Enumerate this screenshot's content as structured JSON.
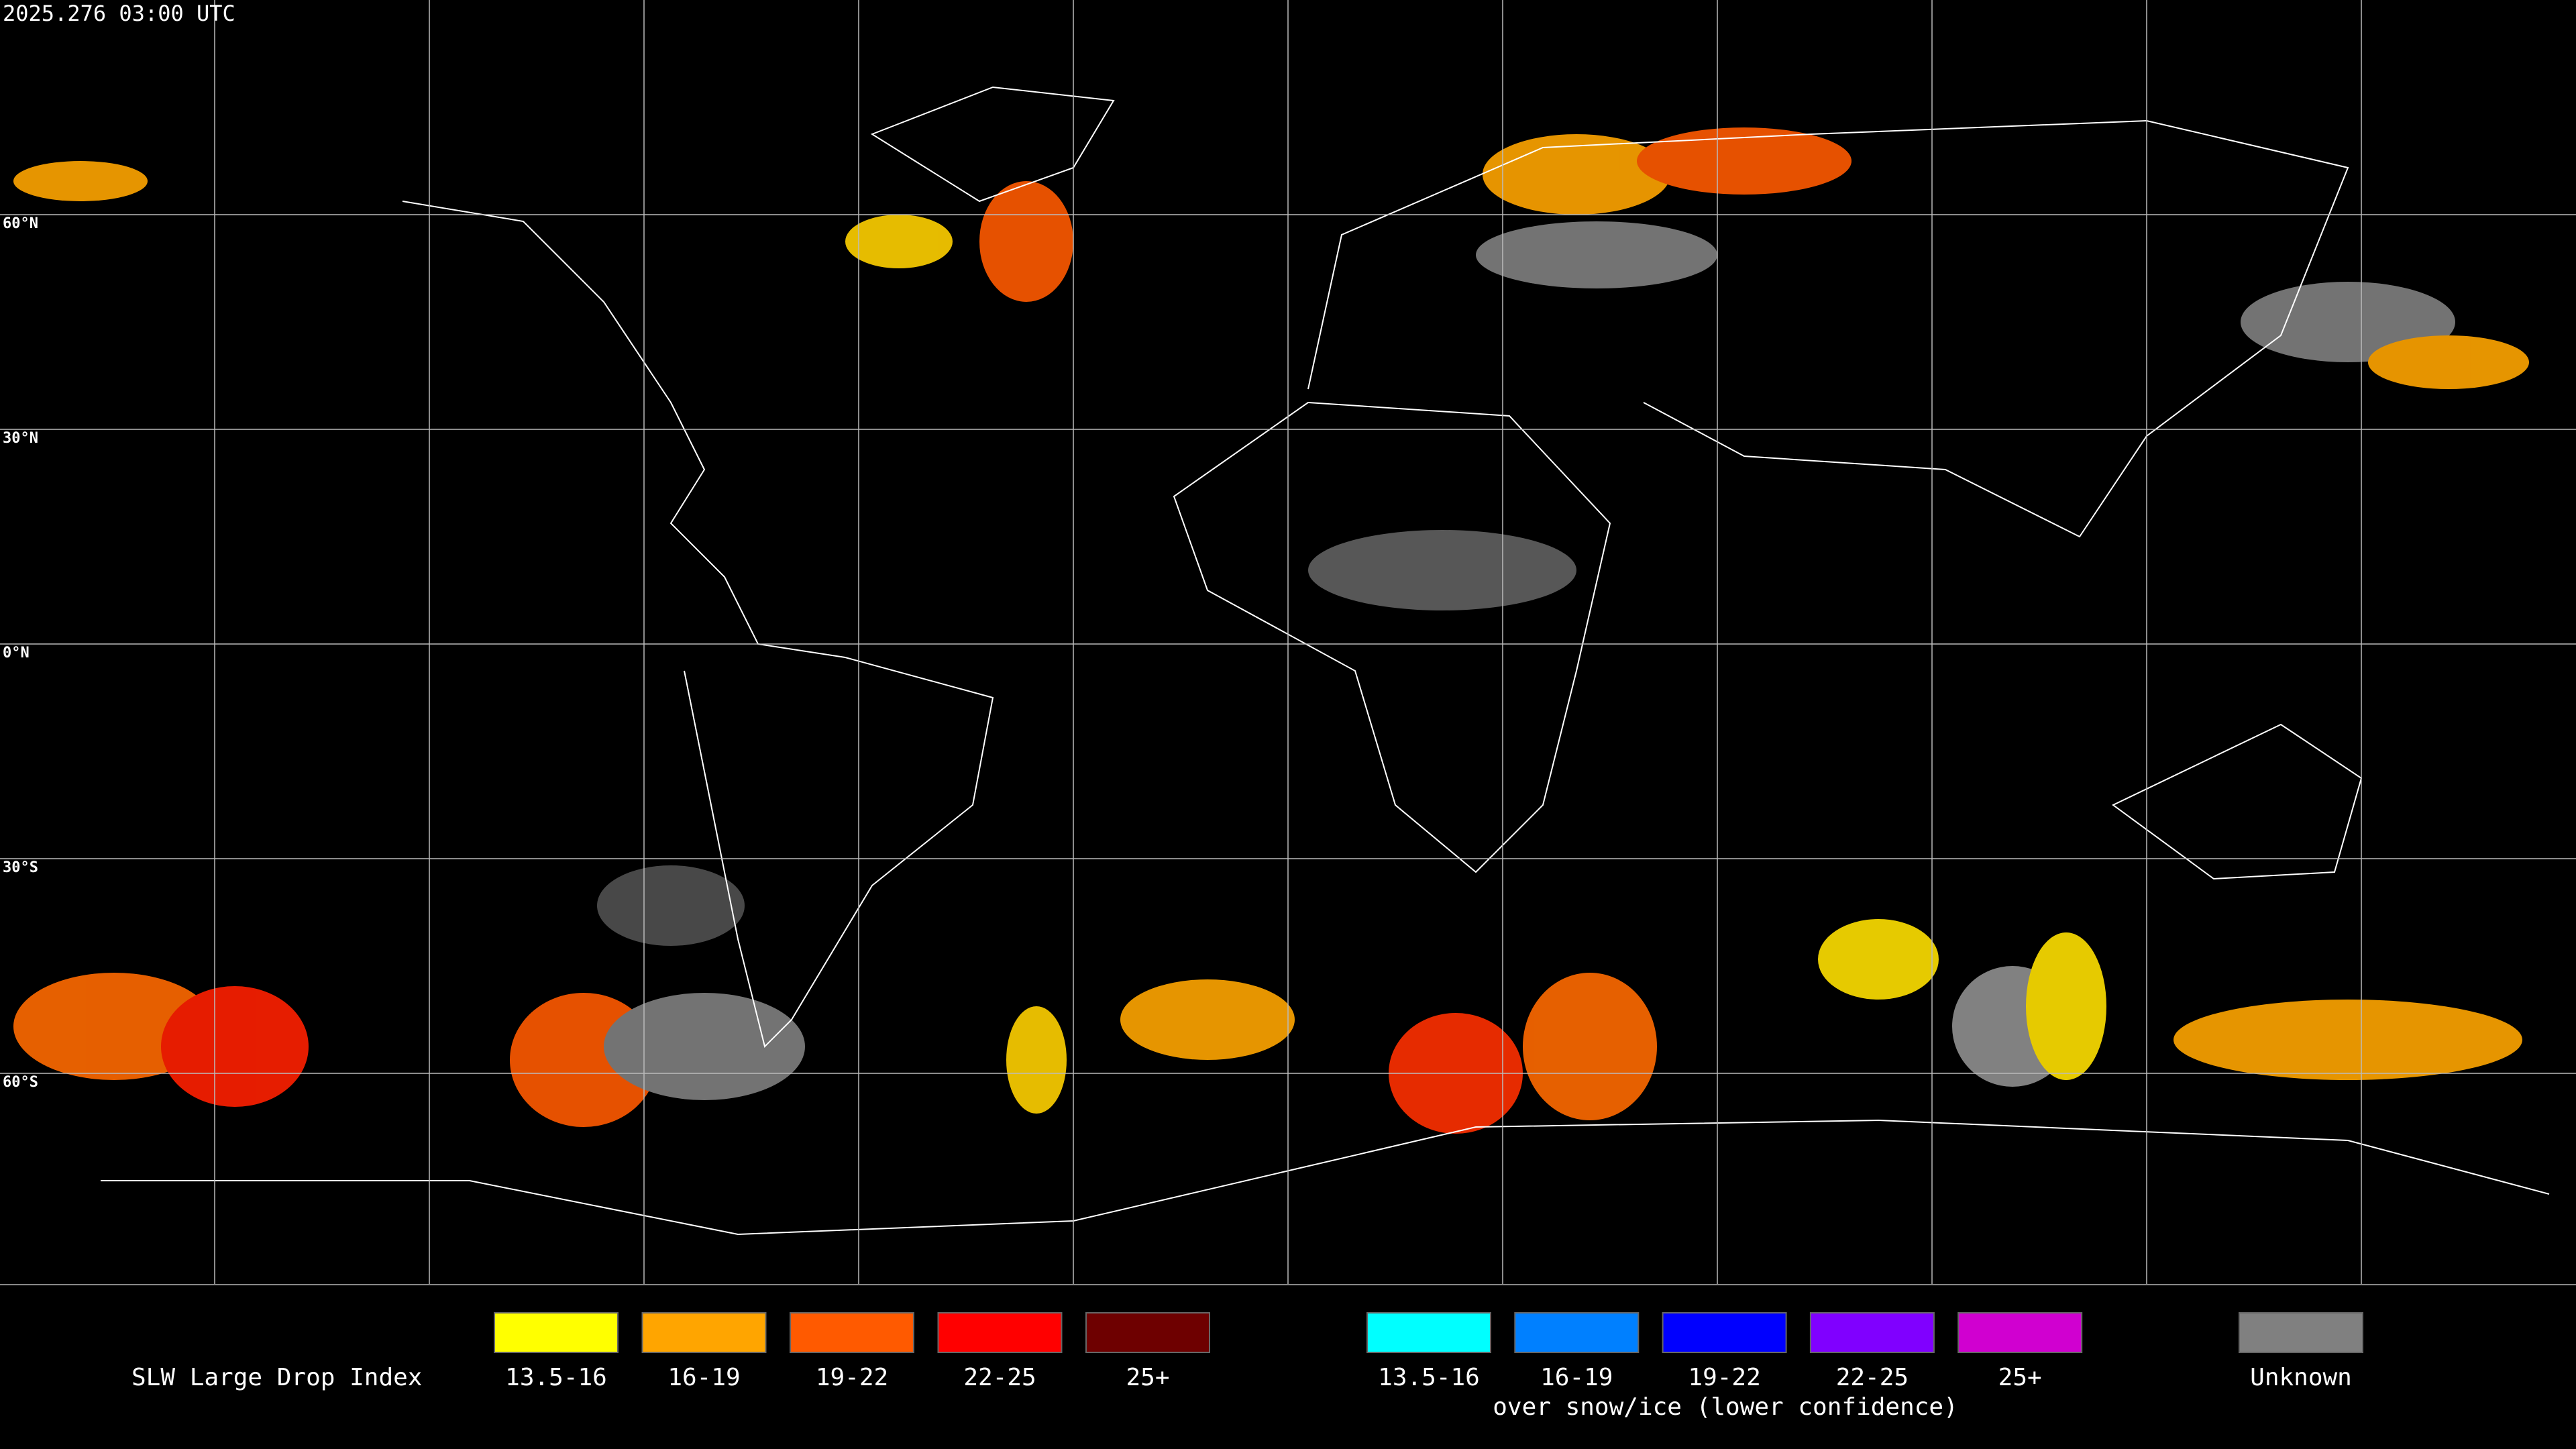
{
  "header": {
    "timestamp": "2025.276 03:00 UTC"
  },
  "map": {
    "latitude_labels": [
      "60°N",
      "30°N",
      "0°N",
      "30°S",
      "60°S"
    ]
  },
  "legend": {
    "title": "SLW Large Drop Index",
    "items": [
      {
        "label": "13.5-16",
        "color": "#ffff00"
      },
      {
        "label": "16-19",
        "color": "#ffa500"
      },
      {
        "label": "19-22",
        "color": "#ff5a00"
      },
      {
        "label": "22-25",
        "color": "#ff0000"
      },
      {
        "label": "25+",
        "color": "#6e0000"
      }
    ],
    "snow_items": [
      {
        "label": "13.5-16",
        "color": "#00ffff"
      },
      {
        "label": "16-19",
        "color": "#0080ff"
      },
      {
        "label": "19-22",
        "color": "#0000ff"
      },
      {
        "label": "22-25",
        "color": "#8000ff"
      },
      {
        "label": "25+",
        "color": "#d000d0"
      }
    ],
    "snow_note": "over snow/ice (lower confidence)",
    "unknown": {
      "label": "Unknown",
      "color": "#808080"
    }
  }
}
